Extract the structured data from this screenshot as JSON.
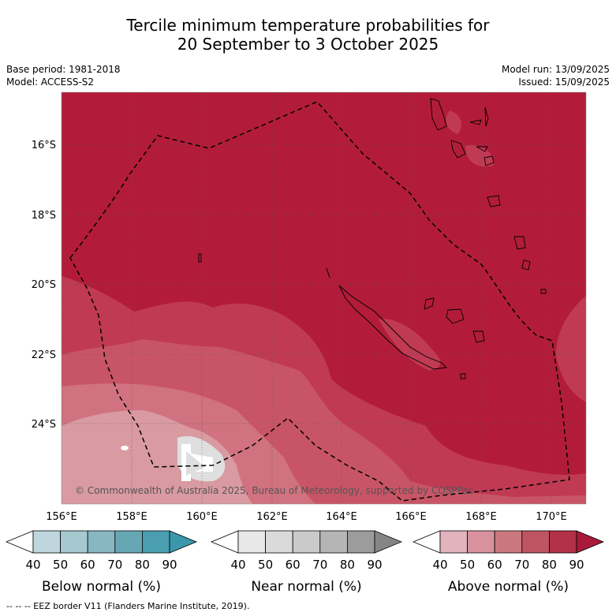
{
  "title_line1": "Tercile minimum temperature probabilities for",
  "title_line2": "20 September to 3 October 2025",
  "base_period": "Base period: 1981-2018",
  "model": "Model: ACCESS-S2",
  "model_run": "Model run: 13/09/2025",
  "issued": "Issued: 15/09/2025",
  "latitude_labels": [
    "16°S",
    "18°S",
    "20°S",
    "22°S",
    "24°S"
  ],
  "longitude_labels": [
    "156°E",
    "158°E",
    "160°E",
    "162°E",
    "164°E",
    "166°E",
    "168°E",
    "170°E"
  ],
  "copyright": "© Commonwealth of Australia 2025, Bureau of Meteorology, supported by COSPPac",
  "legends": [
    {
      "label": "Below normal (%)",
      "ticks": [
        "40",
        "50",
        "60",
        "70",
        "80",
        "90"
      ],
      "colors": [
        "#ffffff",
        "#bfd6de",
        "#a6c8cf",
        "#88b7c1",
        "#67a7b4",
        "#4a9eb0",
        "#3b97aa"
      ]
    },
    {
      "label": "Near normal (%)",
      "ticks": [
        "40",
        "50",
        "60",
        "70",
        "80",
        "90"
      ],
      "colors": [
        "#ffffff",
        "#e8e8e8",
        "#dadada",
        "#cacaca",
        "#b5b5b5",
        "#9c9c9c",
        "#858585"
      ]
    },
    {
      "label": "Above normal (%)",
      "ticks": [
        "40",
        "50",
        "60",
        "70",
        "80",
        "90"
      ],
      "colors": [
        "#ffffff",
        "#e1b3bd",
        "#d7929d",
        "#cb7780",
        "#bf5463",
        "#b23048",
        "#a81a39"
      ]
    }
  ],
  "eez_note": "-- -- -- EEZ border V11 (Flanders Marine Institute, 2019).",
  "colors": {
    "background_90": "#b21c3a",
    "band_80": "#c03a54",
    "band_70": "#c85567",
    "band_60": "#d0727f",
    "band_50": "#d99aa2",
    "band_40": "#dfdfe0"
  }
}
